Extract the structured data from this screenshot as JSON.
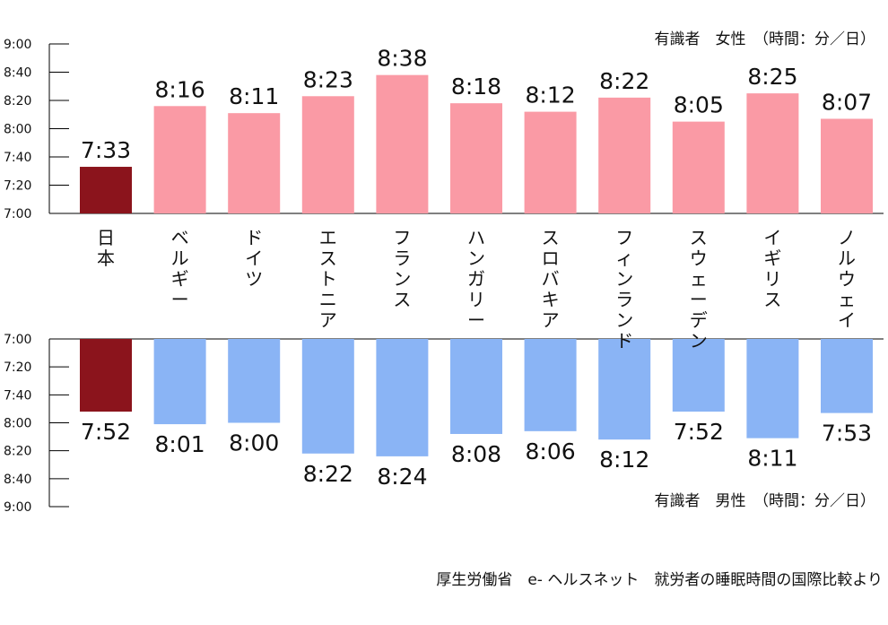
{
  "chart_data": [
    {
      "type": "bar",
      "name": "female",
      "title": "有識者　女性　（時間：分／日）",
      "categories": [
        "日本",
        "ベルギー",
        "ドイツ",
        "エストニア",
        "フランス",
        "ハンガリー",
        "スロバキア",
        "フィンランド",
        "スウェーデン",
        "イギリス",
        "ノルウェイ"
      ],
      "values": [
        "7:33",
        "8:16",
        "8:11",
        "8:23",
        "8:38",
        "8:18",
        "8:12",
        "8:22",
        "8:05",
        "8:25",
        "8:07"
      ],
      "ylim": [
        "7:00",
        "9:00"
      ],
      "yticks": [
        "7:00",
        "7:20",
        "7:40",
        "8:00",
        "8:20",
        "8:40",
        "9:00"
      ]
    },
    {
      "type": "bar",
      "name": "male",
      "title": "有識者　男性　（時間：分／日）",
      "categories": [
        "日本",
        "ベルギー",
        "ドイツ",
        "エストニア",
        "フランス",
        "ハンガリー",
        "スロバキア",
        "フィンランド",
        "スウェーデン",
        "イギリス",
        "ノルウェイ"
      ],
      "values": [
        "7:52",
        "8:01",
        "8:00",
        "8:22",
        "8:24",
        "8:08",
        "8:06",
        "8:12",
        "7:52",
        "8:11",
        "7:53"
      ],
      "ylim": [
        "7:00",
        "9:00"
      ],
      "yticks": [
        "7:00",
        "7:20",
        "7:40",
        "8:00",
        "8:20",
        "8:40",
        "9:00"
      ]
    }
  ],
  "source": "厚生労働省　e- ヘルスネット　就労者の睡眠時間の国際比較より",
  "colors": {
    "highlight": "#8b141c",
    "female": "#fa9aa5",
    "male": "#8ab4f5",
    "axis": "#000000"
  }
}
